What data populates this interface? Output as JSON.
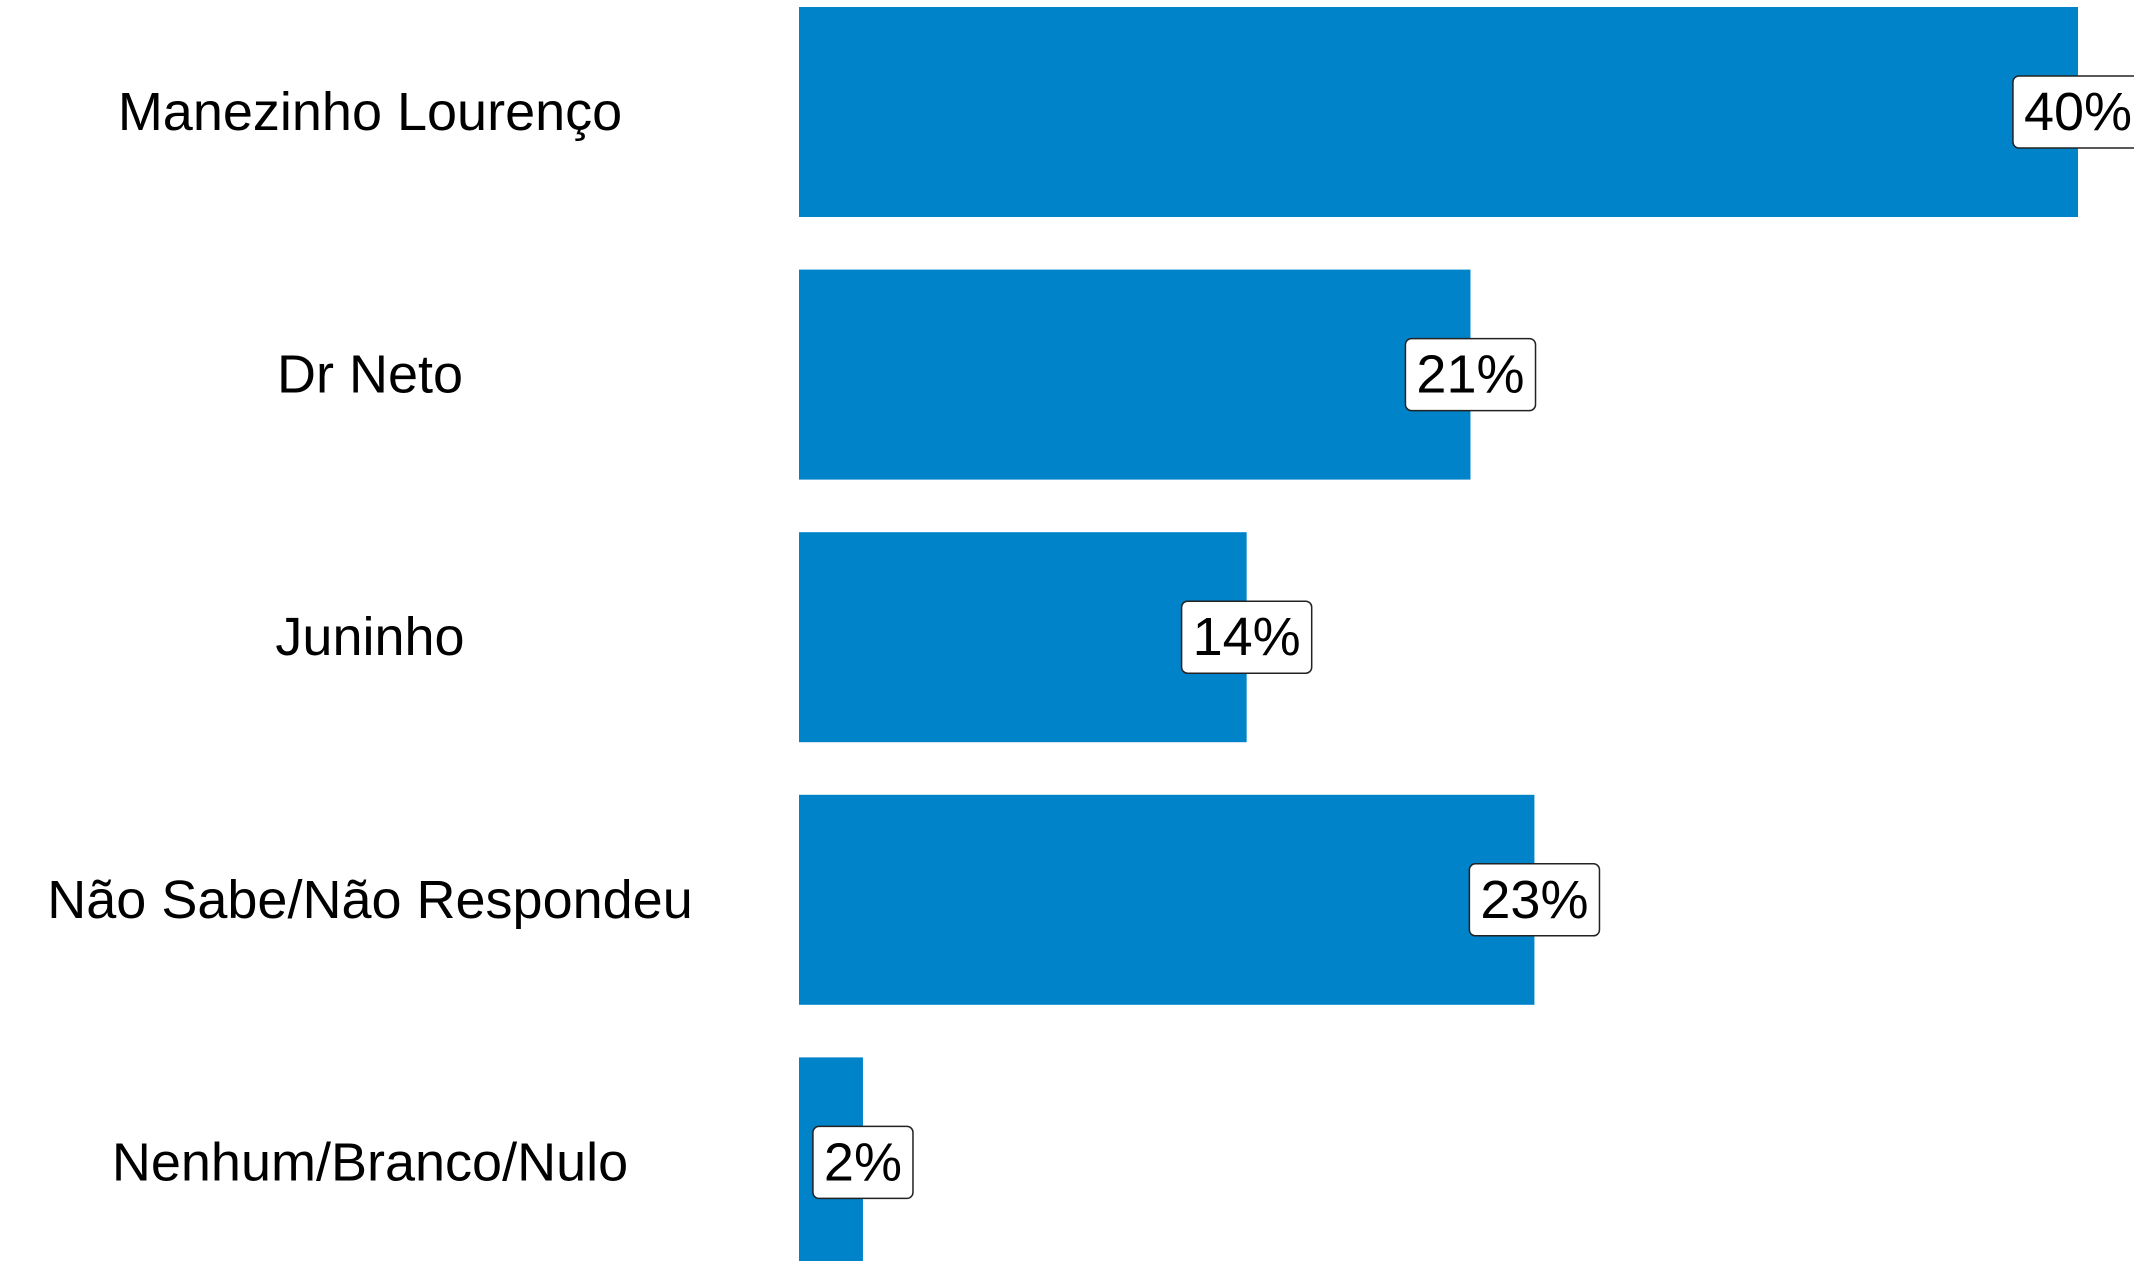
{
  "chart_data": {
    "type": "bar",
    "orientation": "horizontal",
    "categories": [
      "Manezinho Lourenço",
      "Dr Neto",
      "Juninho",
      "Não Sabe/Não Respondeu",
      "Nenhum/Branco/Nulo"
    ],
    "values": [
      40,
      21,
      14,
      23,
      2
    ],
    "value_labels": [
      "40%",
      "21%",
      "14%",
      "23%",
      "2%"
    ],
    "color": "#0083c9",
    "xlim": [
      0,
      40
    ]
  }
}
